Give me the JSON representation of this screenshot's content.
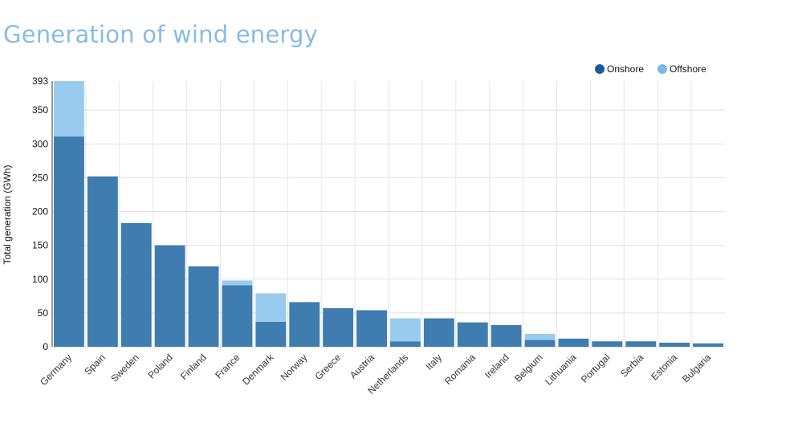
{
  "chart_data": {
    "type": "bar",
    "stacked": true,
    "title": "Generation of wind energy",
    "xlabel": "",
    "ylabel": "Total generation (GWh)",
    "ylim": [
      0,
      393
    ],
    "yticks": [
      0,
      50,
      100,
      150,
      200,
      250,
      300,
      350,
      393
    ],
    "grid": true,
    "legend_position": "top-right",
    "categories": [
      "Germany",
      "Spain",
      "Sweden",
      "Poland",
      "Finland",
      "France",
      "Denmark",
      "Norway",
      "Greece",
      "Austria",
      "Netherlands",
      "Italy",
      "Romania",
      "Ireland",
      "Belgium",
      "Lithuania",
      "Portugal",
      "Serbia",
      "Estonia",
      "Bulgaria"
    ],
    "series": [
      {
        "name": "Onshore",
        "color": "#3f7cb0",
        "legend_color": "#1a5b9c",
        "values": [
          311,
          252,
          183,
          150,
          119,
          91,
          37,
          66,
          57,
          54,
          8,
          42,
          36,
          32,
          10,
          12,
          8,
          8,
          6,
          5
        ]
      },
      {
        "name": "Offshore",
        "color": "#99cbee",
        "legend_color": "#7ab8e6",
        "values": [
          82,
          0,
          0,
          0,
          0,
          7,
          42,
          0,
          0,
          0,
          34,
          0,
          0,
          0,
          9,
          0,
          0,
          0,
          0,
          0
        ]
      }
    ]
  }
}
